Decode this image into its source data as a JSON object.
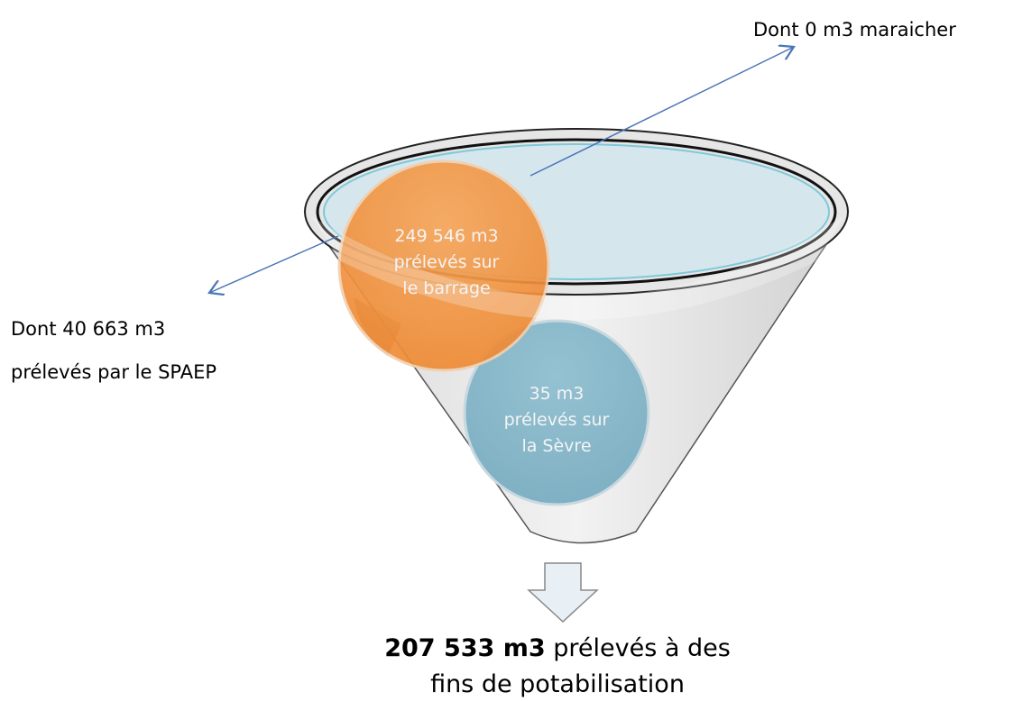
{
  "annotations": {
    "top_right": {
      "lines": [
        "Dont 0 m3 maraicher"
      ]
    },
    "left": {
      "lines": [
        "Dont 40 663 m3",
        "prélevés par le SPAEP"
      ]
    }
  },
  "nodes": [
    {
      "lines": [
        "249 546 m3",
        "prélevés sur",
        "le barrage"
      ]
    },
    {
      "lines": [
        "35 m3",
        "prélevés sur",
        "la Sèvre"
      ]
    }
  ],
  "result": {
    "bold": "207 533 m3",
    "rest": " prélevés à des",
    "line2": "fins de potabilisation"
  }
}
